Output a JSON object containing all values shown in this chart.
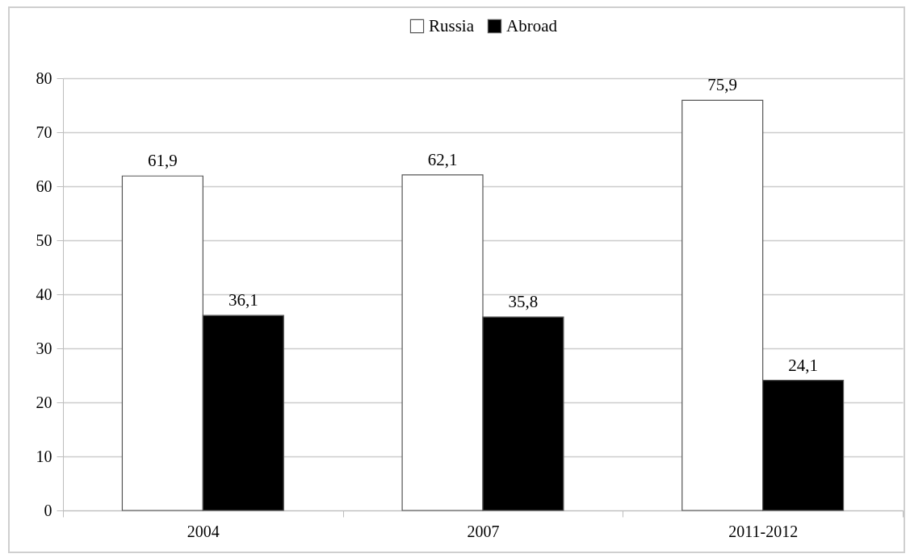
{
  "chart_data": {
    "type": "bar",
    "categories": [
      "2004",
      "2007",
      "2011-2012"
    ],
    "series": [
      {
        "name": "Russia",
        "color": "#ffffff",
        "values": [
          61.9,
          62.1,
          75.9
        ],
        "value_labels": [
          "61,9",
          "62,1",
          "75,9"
        ]
      },
      {
        "name": "Abroad",
        "color": "#000000",
        "values": [
          36.1,
          35.8,
          24.1
        ],
        "value_labels": [
          "36,1",
          "35,8",
          "24,1"
        ]
      }
    ],
    "ylim": [
      0,
      80
    ],
    "yticks": [
      0,
      10,
      20,
      30,
      40,
      50,
      60,
      70,
      80
    ],
    "grid": "y",
    "legend": "top"
  }
}
